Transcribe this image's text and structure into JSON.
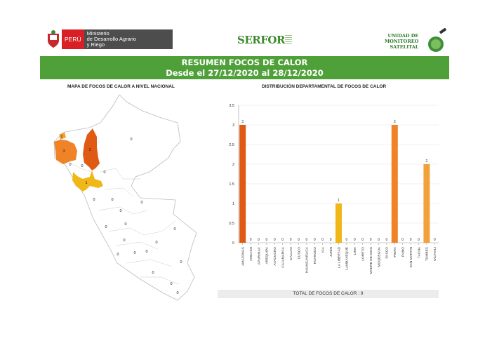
{
  "header": {
    "peru_label": "PERÚ",
    "ministry": [
      "Ministerio",
      "de Desarrollo Agrario",
      "y Riego"
    ],
    "serfor": "SERFOR",
    "unit": [
      "UNIDAD DE",
      "MONITOREO",
      "SATELITAL"
    ]
  },
  "banner": {
    "title": "RESUMEN FOCOS DE CALOR",
    "subtitle": "Desde el 27/12/2020 al 28/12/2020"
  },
  "map": {
    "title": "MAPA DE FOCOS DE CALOR A NIVEL NACIONAL",
    "labels": [
      "0",
      "2",
      "3",
      "3",
      "0",
      "0",
      "0",
      "1",
      "0",
      "0",
      "0",
      "0",
      "0",
      "0",
      "0",
      "0",
      "0",
      "0",
      "0",
      "0",
      "0",
      "0",
      "0",
      "0"
    ],
    "colors": {
      "tumbes": "#f2a23a",
      "piura": "#f08228",
      "amazonas": "#e05a14",
      "la_libertad": "#f0b718"
    }
  },
  "chart_data": {
    "type": "bar",
    "title": "DISTRIBUCIÓN DEPARTAMENTAL DE FOCOS DE CALOR",
    "categories": [
      "AMAZONAS",
      "ANCASH",
      "APURIMAC",
      "AREQUIPA",
      "AYACUCHO",
      "CAJAMARCA",
      "CALLAO",
      "CUSCO",
      "HUANCAVELICA",
      "HUANUCO",
      "ICA",
      "JUNIN",
      "LA LIBERTAD",
      "LAMBAYEQUE",
      "LIMA",
      "LORETO",
      "MADRE DE DIOS",
      "MOQUEGUA",
      "PASCO",
      "PIURA",
      "PUNO",
      "SAN MARTIN",
      "TACNA",
      "TUMBES",
      "UCAYALI"
    ],
    "values": [
      3,
      0,
      0,
      0,
      0,
      0,
      0,
      0,
      0,
      0,
      0,
      0,
      1,
      0,
      0,
      0,
      0,
      0,
      0,
      3,
      0,
      0,
      0,
      2,
      0
    ],
    "colors": {
      "AMAZONAS": "#e05a14",
      "LA LIBERTAD": "#f0b718",
      "PIURA": "#f08228",
      "TUMBES": "#f2a23a"
    },
    "yticks": [
      "0",
      "0.5",
      "1",
      "1.5",
      "2",
      "2.5",
      "3",
      "3.5"
    ],
    "ylim": [
      0,
      3.5
    ],
    "grid": true
  },
  "footer": {
    "total": "TOTAL DE FOCOS DE CALOR : 9"
  }
}
